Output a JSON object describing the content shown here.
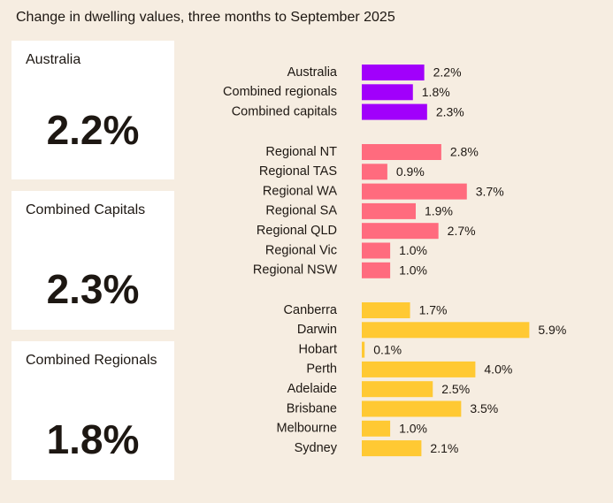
{
  "chart_data": {
    "type": "bar",
    "orientation": "horizontal",
    "title": "Change in dwelling values, three months to September 2025",
    "unit": "%",
    "grid": false,
    "groups": [
      {
        "color": "#a100fb",
        "categories": [
          "Australia",
          "Combined regionals",
          "Combined capitals"
        ],
        "values": [
          2.2,
          1.8,
          2.3
        ]
      },
      {
        "color": "#ff6b7e",
        "categories": [
          "Regional NT",
          "Regional TAS",
          "Regional WA",
          "Regional SA",
          "Regional QLD",
          "Regional Vic",
          "Regional NSW"
        ],
        "values": [
          2.8,
          0.9,
          3.7,
          1.9,
          2.7,
          1.0,
          1.0
        ]
      },
      {
        "color": "#ffc933",
        "categories": [
          "Canberra",
          "Darwin",
          "Hobart",
          "Perth",
          "Adelaide",
          "Brisbane",
          "Melbourne",
          "Sydney"
        ],
        "values": [
          1.7,
          5.9,
          0.1,
          4.0,
          2.5,
          3.5,
          1.0,
          2.1
        ]
      }
    ]
  },
  "cards": [
    {
      "label": "Australia",
      "value": "2.2%"
    },
    {
      "label": "Combined Capitals",
      "value": "2.3%"
    },
    {
      "label": "Combined Regionals",
      "value": "1.8%"
    }
  ]
}
